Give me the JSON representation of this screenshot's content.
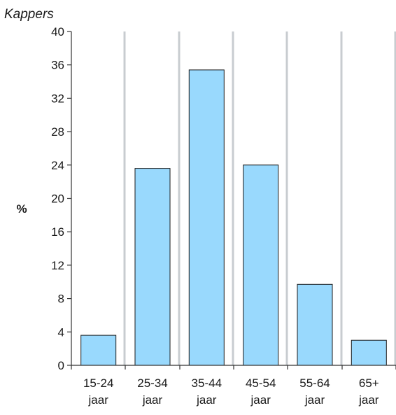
{
  "chart_data": {
    "type": "bar",
    "title": "Kappers",
    "ylabel": "%",
    "xlabel": "",
    "categories": [
      [
        "15-24",
        "jaar"
      ],
      [
        "25-34",
        "jaar"
      ],
      [
        "35-44",
        "jaar"
      ],
      [
        "45-54",
        "jaar"
      ],
      [
        "55-64",
        "jaar"
      ],
      [
        "65+",
        "jaar"
      ]
    ],
    "values": [
      3.6,
      23.6,
      35.4,
      24.0,
      9.7,
      3.0
    ],
    "ylim": [
      0,
      40
    ],
    "yticks": [
      0,
      4,
      8,
      12,
      16,
      20,
      24,
      28,
      32,
      36,
      40
    ],
    "grid": "vertical",
    "bar_color": "#99d9fd",
    "bar_stroke": "#1a1a1a",
    "grid_color": "#c8ccd0"
  }
}
